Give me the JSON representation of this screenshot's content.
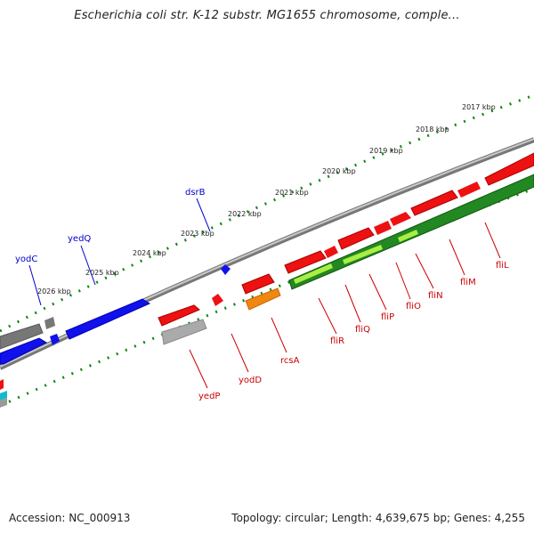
{
  "title": "Escherichia coli str. K-12 substr. MG1655 chromosome, comple...",
  "footer": {
    "accession_label": "Accession:",
    "accession": "NC_000913",
    "topology_label": "Topology:",
    "topology": "circular",
    "length_label": "Length:",
    "length": "4,639,675 bp",
    "genes_label": "Genes:",
    "genes": "4,255"
  },
  "colors": {
    "forward_gene": "#ee1111",
    "reverse_gene": "#1111ee",
    "label_red": "#cc0000",
    "label_blue": "#0000cc",
    "backbone": "#888888",
    "tick": "#118811",
    "cds_green": "#228822",
    "cds_light": "#aaee44",
    "orange": "#ee8811",
    "gray": "#999999",
    "cyan": "#11bbcc"
  },
  "kbp_labels": [
    "2017 kbp",
    "2018 kbp",
    "2019 kbp",
    "2020 kbp",
    "2021 kbp",
    "2022 kbp",
    "2023 kbp",
    "2024 kbp",
    "2025 kbp",
    "2026 kbp"
  ],
  "genes_top": [
    {
      "name": "dsrB"
    },
    {
      "name": "yedQ"
    },
    {
      "name": "yodC"
    }
  ],
  "genes_bottom": [
    {
      "name": "yedP"
    },
    {
      "name": "yodD"
    },
    {
      "name": "rcsA"
    },
    {
      "name": "fliR"
    },
    {
      "name": "fliQ"
    },
    {
      "name": "fliP"
    },
    {
      "name": "fliO"
    },
    {
      "name": "fliN"
    },
    {
      "name": "fliM"
    },
    {
      "name": "fliL"
    }
  ]
}
